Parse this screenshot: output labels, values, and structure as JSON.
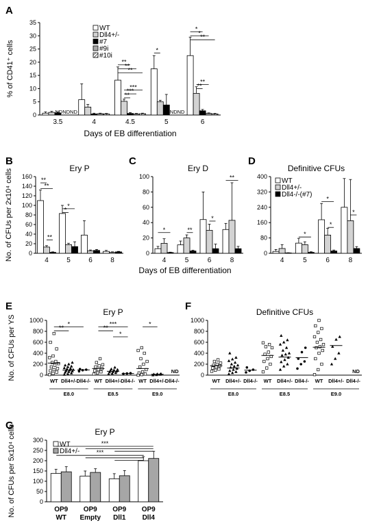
{
  "colors": {
    "white": "#ffffff",
    "light_gray": "#d3d3d3",
    "gray": "#a6a6a6",
    "black": "#000000"
  },
  "chart_data": [
    {
      "panel": "A",
      "type": "bar",
      "title": "",
      "ylabel": "% of CD41⁺ cells",
      "xlabel": "Days of EB differentiation",
      "ylim": [
        0,
        35
      ],
      "yticks": [
        0,
        5,
        10,
        15,
        20,
        25,
        30,
        35
      ],
      "categories": [
        "3.5",
        "4",
        "4.5",
        "5",
        "6"
      ],
      "series": [
        {
          "name": "WT",
          "fill": "white",
          "values": [
            0.7,
            5.8,
            13.2,
            17.5,
            22.5
          ],
          "err": [
            0.5,
            6,
            5,
            5,
            7
          ]
        },
        {
          "name": "Dll4+/-",
          "fill": "light_gray",
          "values": [
            1.0,
            3.0,
            5.2,
            5.0,
            8.2
          ],
          "err": [
            0.4,
            1.0,
            0.8,
            0.6,
            2.5
          ]
        },
        {
          "name": "#7",
          "fill": "black",
          "values": [
            0.8,
            0.4,
            0.6,
            3.8,
            1.6
          ],
          "err": [
            0.3,
            0.3,
            0.3,
            4,
            0.5
          ]
        },
        {
          "name": "#9i",
          "fill": "gray",
          "values": [
            0,
            0.5,
            0.4,
            0,
            0.6
          ],
          "err": [
            0,
            0.2,
            0.2,
            0,
            0.2
          ]
        },
        {
          "name": "#10i",
          "fill": "hatch",
          "values": [
            0,
            0.4,
            0.5,
            0,
            0.4
          ],
          "err": [
            0,
            0.2,
            0.2,
            0,
            0.2
          ]
        }
      ],
      "annotations": [
        "NDNDND",
        "NDND",
        "*",
        "**",
        "***"
      ],
      "legend": "top-left"
    },
    {
      "panel": "B",
      "type": "bar",
      "title": "Ery P",
      "ylabel": "No. of CFUs per 2x10⁴ cells",
      "xlabel": "",
      "ylim": [
        0,
        160
      ],
      "yticks": [
        0,
        20,
        40,
        60,
        80,
        100,
        120,
        140,
        160
      ],
      "categories": [
        "4",
        "5",
        "6",
        "8"
      ],
      "series": [
        {
          "name": "WT",
          "fill": "white",
          "values": [
            110,
            83,
            38,
            4
          ],
          "err": [
            22,
            17,
            30,
            2
          ]
        },
        {
          "name": "Dll4+/-",
          "fill": "light_gray",
          "values": [
            13,
            18,
            5,
            2
          ],
          "err": [
            3,
            3,
            2,
            1
          ]
        },
        {
          "name": "Dll4-/-(#7)",
          "fill": "black",
          "values": [
            2,
            14,
            6,
            3
          ],
          "err": [
            1,
            10,
            2,
            1
          ]
        }
      ],
      "annotations": [
        "*",
        "**"
      ]
    },
    {
      "panel": "C",
      "type": "bar",
      "title": "Ery D",
      "ylabel": "",
      "xlabel": "Days of EB differentiation",
      "ylim": [
        0,
        100
      ],
      "yticks": [
        0,
        20,
        40,
        60,
        80,
        100
      ],
      "categories": [
        "4",
        "5",
        "6",
        "8"
      ],
      "series": [
        {
          "name": "WT",
          "fill": "white",
          "values": [
            6,
            11,
            44,
            31
          ],
          "err": [
            3,
            5,
            36,
            8
          ]
        },
        {
          "name": "Dll4+/-",
          "fill": "light_gray",
          "values": [
            13,
            20,
            30,
            43
          ],
          "err": [
            6,
            4,
            8,
            49
          ]
        },
        {
          "name": "Dll4-/-(#7)",
          "fill": "black",
          "values": [
            1,
            3,
            6,
            6
          ],
          "err": [
            0.5,
            1,
            6,
            3
          ]
        }
      ],
      "annotations": [
        "*",
        "**"
      ]
    },
    {
      "panel": "D",
      "type": "bar",
      "title": "Definitive CFUs",
      "ylabel": "",
      "xlabel": "",
      "ylim": [
        0,
        400
      ],
      "yticks": [
        0,
        80,
        160,
        240,
        320,
        400
      ],
      "categories": [
        "4",
        "5",
        "6",
        "8"
      ],
      "series": [
        {
          "name": "WT",
          "fill": "white",
          "values": [
            10,
            53,
            175,
            240
          ],
          "err": [
            10,
            25,
            85,
            150
          ]
        },
        {
          "name": "Dll4+/-",
          "fill": "light_gray",
          "values": [
            25,
            45,
            95,
            170
          ],
          "err": [
            20,
            15,
            35,
            215
          ]
        },
        {
          "name": "Dll4-/-(#7)",
          "fill": "black",
          "values": [
            2,
            5,
            12,
            25
          ],
          "err": [
            1,
            3,
            5,
            10
          ]
        }
      ],
      "annotations": [
        "*"
      ],
      "legend": "top-left"
    },
    {
      "panel": "E",
      "type": "scatter",
      "title": "Ery P",
      "ylabel": "No. of CFUs per YS",
      "xlabel": "",
      "ylim": [
        0,
        1000
      ],
      "yticks": [
        0,
        200,
        400,
        600,
        800,
        1000
      ],
      "groups": [
        {
          "stage": "E8.0",
          "genotypes": [
            {
              "name": "WT",
              "marker": "square",
              "values": [
                10,
                30,
                55,
                80,
                100,
                120,
                150,
                180,
                210,
                230,
                250,
                320,
                350,
                480,
                600,
                760
              ],
              "mean": 220
            },
            {
              "name": "Dll4+/-",
              "marker": "triangle",
              "values": [
                10,
                20,
                35,
                50,
                60,
                70,
                80,
                90,
                100,
                110,
                120,
                130,
                150,
                160,
                180,
                200,
                230
              ],
              "mean": 90
            },
            {
              "name": "Dll4-/-",
              "marker": "dot",
              "values": [
                70,
                90,
                100,
                110
              ],
              "mean": 95
            }
          ]
        },
        {
          "stage": "E8.5",
          "genotypes": [
            {
              "name": "WT",
              "marker": "square",
              "values": [
                20,
                40,
                60,
                80,
                100,
                120,
                150,
                170,
                190,
                230,
                300
              ],
              "mean": 120
            },
            {
              "name": "Dll4+/-",
              "marker": "triangle",
              "values": [
                20,
                30,
                40,
                55,
                60,
                70,
                80,
                90,
                100,
                110,
                140
              ],
              "mean": 70
            },
            {
              "name": "Dll4-/-",
              "marker": "dot",
              "values": [
                25,
                30,
                35
              ],
              "mean": 30
            }
          ]
        },
        {
          "stage": "E9.0",
          "genotypes": [
            {
              "name": "WT",
              "marker": "square",
              "values": [
                0,
                10,
                20,
                40,
                60,
                100,
                150,
                200,
                250,
                300,
                400,
                450,
                500
              ],
              "mean": 120
            },
            {
              "name": "Dll4+/-",
              "marker": "triangle",
              "values": [
                0,
                5,
                10,
                15,
                20,
                25
              ],
              "mean": 15
            },
            {
              "name": "Dll4-/-",
              "marker": "dot",
              "values": [],
              "mean": null,
              "label": "ND"
            }
          ]
        }
      ],
      "annotations": [
        "*",
        "**",
        "***"
      ]
    },
    {
      "panel": "F",
      "type": "scatter",
      "title": "Definitive CFUs",
      "ylabel": "",
      "xlabel": "",
      "ylim": [
        0,
        1000
      ],
      "yticks": [
        0,
        200,
        400,
        600,
        800,
        1000
      ],
      "groups": [
        {
          "stage": "E8.0",
          "genotypes": [
            {
              "name": "WT",
              "marker": "square",
              "values": [
                70,
                90,
                110,
                130,
                150,
                170,
                180,
                200,
                220,
                250,
                280
              ],
              "mean": 170
            },
            {
              "name": "Dll4+/-",
              "marker": "triangle",
              "values": [
                20,
                40,
                60,
                80,
                100,
                120,
                140,
                160,
                180,
                200,
                230,
                260,
                290,
                320,
                400
              ],
              "mean": 130
            },
            {
              "name": "Dll4-/-",
              "marker": "dot",
              "values": [
                50,
                80,
                100,
                140
              ],
              "mean": 90
            }
          ]
        },
        {
          "stage": "E8.5",
          "genotypes": [
            {
              "name": "WT",
              "marker": "square",
              "values": [
                60,
                130,
                200,
                250,
                300,
                340,
                380,
                420,
                500,
                520,
                560,
                590
              ],
              "mean": 360
            },
            {
              "name": "Dll4+/-",
              "marker": "triangle",
              "values": [
                100,
                160,
                200,
                240,
                280,
                320,
                360,
                380,
                400,
                450,
                500,
                560,
                600,
                640,
                720
              ],
              "mean": 330
            },
            {
              "name": "Dll4-/-",
              "marker": "dot",
              "values": [
                120,
                200,
                250,
                300,
                420,
                500
              ],
              "mean": 320
            }
          ]
        },
        {
          "stage": "E9.0",
          "genotypes": [
            {
              "name": "WT",
              "marker": "square",
              "values": [
                10,
                100,
                200,
                300,
                400,
                450,
                500,
                520,
                560,
                600,
                650,
                700,
                780,
                850,
                900,
                1000
              ],
              "mean": 510
            },
            {
              "name": "Dll4+/-",
              "marker": "triangle",
              "values": [
                200,
                300,
                400,
                520,
                650,
                700
              ],
              "mean": 540
            },
            {
              "name": "Dll4-/-",
              "marker": "dot",
              "values": [],
              "mean": null,
              "label": "ND"
            }
          ]
        }
      ]
    },
    {
      "panel": "G",
      "type": "bar",
      "title": "Ery P",
      "ylabel": "No. of CFUs per 5x10⁴ cells",
      "xlabel": "",
      "ylim": [
        0,
        300
      ],
      "yticks": [
        0,
        50,
        100,
        150,
        200,
        250,
        300
      ],
      "categories": [
        "OP9 WT",
        "OP9 Empty",
        "OP9 Dll1",
        "OP9 Dll4"
      ],
      "series": [
        {
          "name": "WT",
          "fill": "white",
          "values": [
            138,
            125,
            112,
            200
          ],
          "err": [
            20,
            25,
            25,
            20
          ]
        },
        {
          "name": "Dll4+/-",
          "fill": "gray",
          "values": [
            146,
            143,
            127,
            211
          ],
          "err": [
            25,
            18,
            25,
            35
          ]
        }
      ],
      "annotations": [
        "***"
      ],
      "legend": "top-left"
    }
  ],
  "labels": {
    "A": "A",
    "B": "B",
    "C": "C",
    "D": "D",
    "E": "E",
    "F": "F",
    "G": "G",
    "nd": "ND",
    "nd3": "NDNDND",
    "nd2": "NDND",
    "wt": "WT",
    "het": "Dll4+/-",
    "ko": "Dll4-/-",
    "s1": "*",
    "s2": "**",
    "s3": "***"
  }
}
